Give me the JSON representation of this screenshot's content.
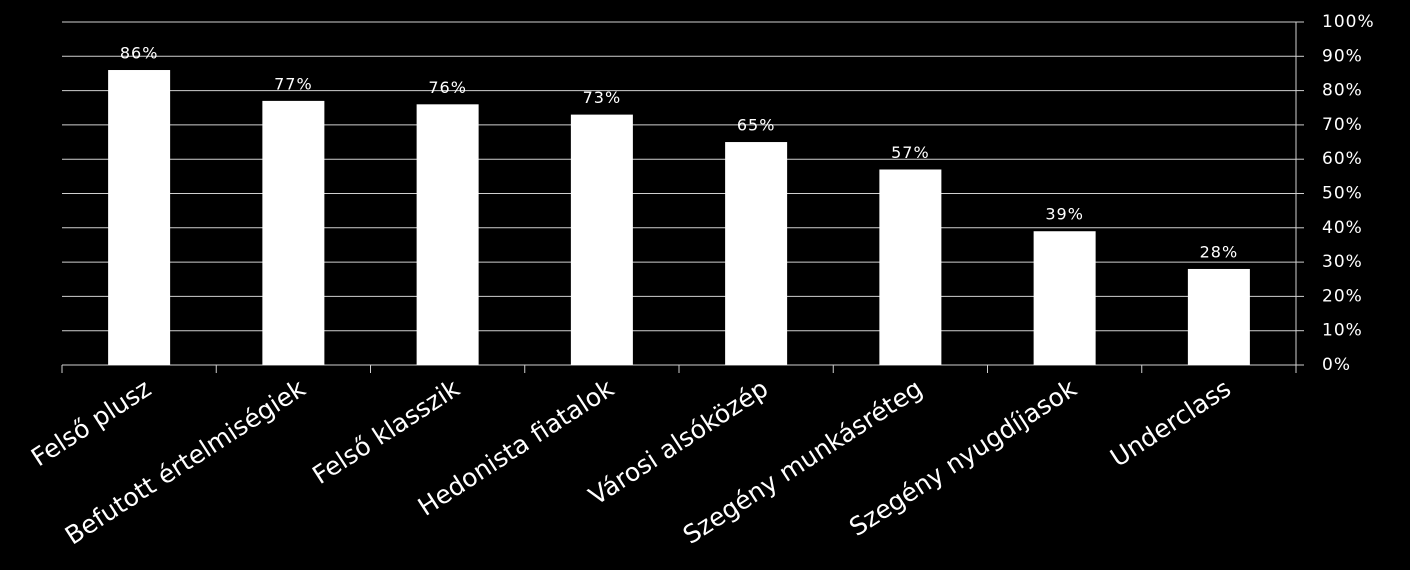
{
  "chart_data": {
    "type": "bar",
    "categories": [
      "Felső plusz",
      "Befutott értelmiségiek",
      "Felső klasszik",
      "Hedonista fiatalok",
      "Városi alsóközép",
      "Szegény munkásréteg",
      "Szegény nyugdíjasok",
      "Underclass"
    ],
    "values": [
      86,
      77,
      76,
      73,
      65,
      57,
      39,
      28
    ],
    "value_labels": [
      "86%",
      "77%",
      "76%",
      "73%",
      "65%",
      "57%",
      "39%",
      "28%"
    ],
    "color": "#ffffff",
    "ylim": [
      0,
      100
    ],
    "yticks": [
      {
        "value": 0,
        "label": "0%"
      },
      {
        "value": 10,
        "label": "10%"
      },
      {
        "value": 20,
        "label": "20%"
      },
      {
        "value": 30,
        "label": "30%"
      },
      {
        "value": 40,
        "label": "40%"
      },
      {
        "value": 50,
        "label": "50%"
      },
      {
        "value": 60,
        "label": "60%"
      },
      {
        "value": 70,
        "label": "70%"
      },
      {
        "value": 80,
        "label": "80%"
      },
      {
        "value": 90,
        "label": "90%"
      },
      {
        "value": 100,
        "label": "100%"
      }
    ],
    "grid": true
  }
}
